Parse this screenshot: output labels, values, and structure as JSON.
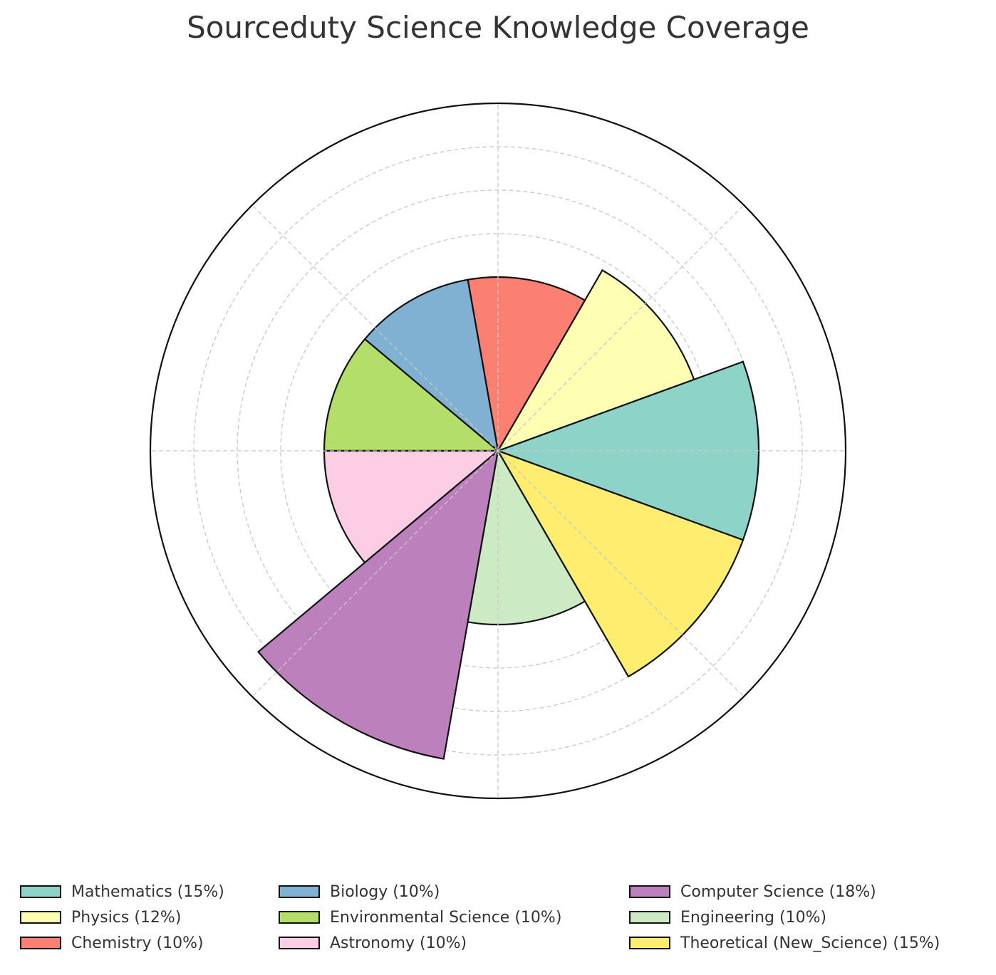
{
  "chart_data": {
    "type": "bar",
    "projection": "polar",
    "title": "Sourceduty Science Knowledge Coverage",
    "xlabel": "",
    "ylabel": "",
    "rlim": [
      0,
      20
    ],
    "rgrid": [
      2.5,
      5,
      7.5,
      10,
      12.5,
      15,
      17.5
    ],
    "grid": true,
    "legend_position": "bottom",
    "legend_columns": 3,
    "categories": [
      "Mathematics (15%)",
      "Physics (12%)",
      "Chemistry (10%)",
      "Biology (10%)",
      "Environmental Science (10%)",
      "Astronomy (10%)",
      "Computer Science (18%)",
      "Engineering (10%)",
      "Theoretical (New_Science) (15%)"
    ],
    "values": [
      15,
      12,
      10,
      10,
      10,
      10,
      18,
      10,
      15
    ],
    "start_angles_deg": [
      -20,
      20,
      60,
      100,
      140,
      180,
      220,
      260,
      300
    ],
    "width_deg": 40,
    "colors": [
      "#8dd3c7",
      "#ffffb3",
      "#fb8072",
      "#80b1d3",
      "#b3de69",
      "#fccde5",
      "#bc80bd",
      "#ccebc5",
      "#ffed6f"
    ]
  }
}
